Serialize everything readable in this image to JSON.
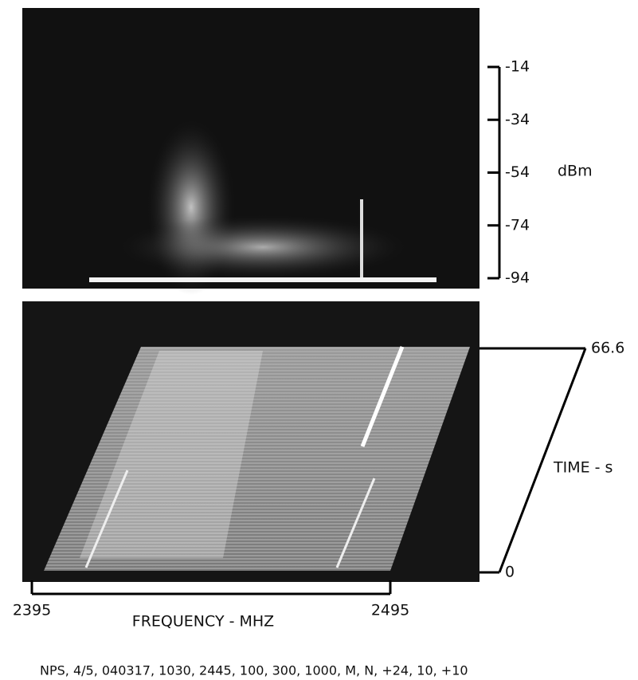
{
  "chart_data": [
    {
      "type": "spectrum",
      "ylabel": "dBm",
      "ylim": [
        -94,
        -14
      ],
      "yticks": [
        -14,
        -34,
        -54,
        -74,
        -94
      ]
    },
    {
      "type": "waterfall",
      "xlabel": "FREQUENCY - MHZ",
      "xlim": [
        2395,
        2495
      ],
      "xticks": [
        2395,
        2495
      ],
      "ylabel": "TIME - s",
      "ylim": [
        0,
        66.6
      ],
      "yticks": [
        0,
        66.6
      ]
    }
  ],
  "caption": "NPS, 4/5, 040317, 1030, 2445, 100, 300, 1000, M, N, +24, 10, +10"
}
